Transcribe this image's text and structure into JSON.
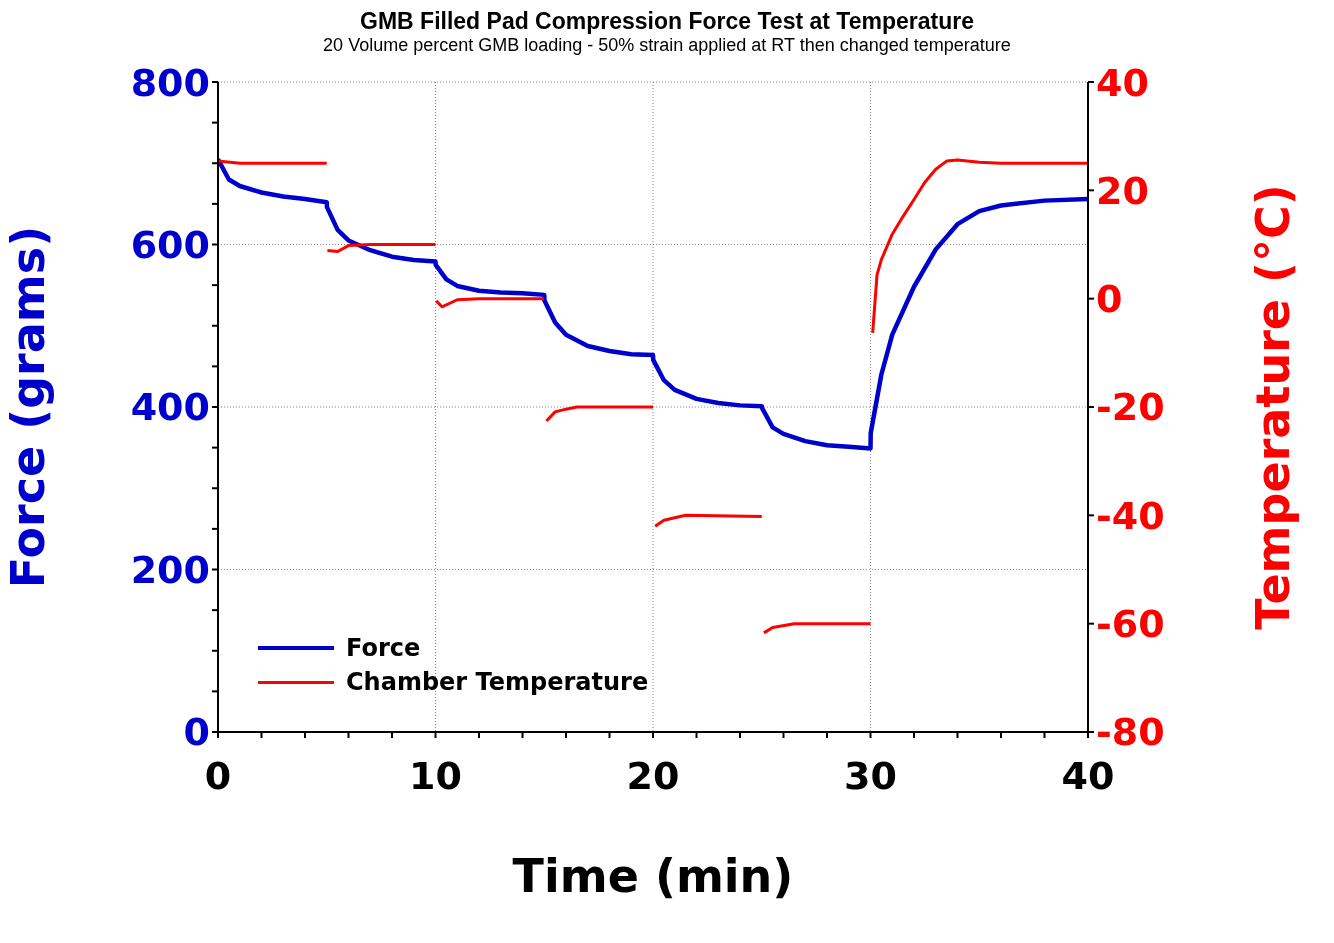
{
  "chart_data": {
    "type": "line",
    "title": "GMB Filled Pad Compression Force Test at Temperature",
    "subtitle": "20 Volume percent GMB loading - 50% strain applied at RT then changed temperature",
    "xlabel": "Time (min)",
    "ylabel": "Force (grams)",
    "y2label": "Temperature (°C)",
    "xlim": [
      0,
      40
    ],
    "xticks": [
      0,
      {
        "value": 2,
        "label": null
      },
      {
        "value": 4,
        "label": null
      },
      {
        "value": 6,
        "label": null
      },
      {
        "value": 8,
        "label": null
      },
      10,
      {
        "value": 12,
        "label": null
      },
      {
        "value": 14,
        "label": null
      },
      {
        "value": 16,
        "label": null
      },
      {
        "value": 18,
        "label": null
      },
      20,
      {
        "value": 22,
        "label": null
      },
      {
        "value": 24,
        "label": null
      },
      {
        "value": 26,
        "label": null
      },
      {
        "value": 28,
        "label": null
      },
      30,
      {
        "value": 32,
        "label": null
      },
      {
        "value": 34,
        "label": null
      },
      {
        "value": 36,
        "label": null
      },
      {
        "value": 38,
        "label": null
      },
      40
    ],
    "ylim": [
      0,
      800
    ],
    "yticks": [
      0,
      {
        "value": 50,
        "label": null
      },
      {
        "value": 100,
        "label": null
      },
      {
        "value": 150,
        "label": null
      },
      200,
      {
        "value": 250,
        "label": null
      },
      {
        "value": 300,
        "label": null
      },
      {
        "value": 350,
        "label": null
      },
      400,
      {
        "value": 450,
        "label": null
      },
      {
        "value": 500,
        "label": null
      },
      {
        "value": 550,
        "label": null
      },
      600,
      {
        "value": 650,
        "label": null
      },
      {
        "value": 700,
        "label": null
      },
      {
        "value": 750,
        "label": null
      },
      800
    ],
    "y2lim": [
      -80,
      40
    ],
    "y2ticks": [
      -80,
      -60,
      -40,
      -20,
      0,
      20,
      40
    ],
    "grid": true,
    "legend": "bottom left",
    "line_style": "solid",
    "marker": "none",
    "series": [
      {
        "name": "Force",
        "color": "#0000cc",
        "x": [
          0,
          0.5,
          1,
          2,
          3,
          4,
          5,
          5.01,
          5.5,
          6,
          7,
          8,
          9,
          10,
          10.01,
          10.5,
          11,
          12,
          13,
          14,
          15,
          15.01,
          15.5,
          16,
          17,
          18,
          19,
          20,
          20.01,
          20.5,
          21,
          22,
          23,
          24,
          25,
          25.01,
          25.5,
          26,
          27,
          28,
          29,
          30,
          30.01,
          30.5,
          31,
          32,
          33,
          34,
          35,
          36,
          38,
          40
        ],
        "values": [
          705,
          680,
          672,
          664,
          659,
          656,
          652,
          646,
          618,
          605,
          593,
          585,
          581,
          579,
          575,
          557,
          549,
          543,
          541,
          540,
          538,
          531,
          504,
          489,
          475,
          469,
          465,
          464,
          458,
          433,
          421,
          410,
          405,
          402,
          401,
          399,
          375,
          367,
          358,
          353,
          351,
          349,
          368,
          440,
          489,
          548,
          594,
          625,
          641,
          648,
          654,
          656
        ]
      },
      {
        "name": "Chamber Temperature",
        "color": "#ff0000",
        "axis": "y2",
        "x": [
          0,
          1,
          5,
          5.02,
          5.03,
          5.5,
          6,
          7,
          10,
          10.02,
          10.03,
          10.3,
          11,
          12,
          15,
          15.02,
          15.1,
          15.5,
          16,
          16.5,
          20,
          20.02,
          20.1,
          20.5,
          21.5,
          25,
          25.02,
          25.1,
          25.5,
          26.5,
          30,
          30.02,
          30.1,
          30.3,
          30.5,
          31,
          31.5,
          32,
          32.5,
          33,
          33.5,
          34,
          35,
          36,
          40
        ],
        "values": [
          25.4,
          25,
          25,
          null,
          8.9,
          8.7,
          9.8,
          10,
          10,
          null,
          -0.4,
          -1.5,
          -0.2,
          0,
          0,
          null,
          -22.6,
          -20.9,
          -20.4,
          -20,
          -20,
          null,
          -42,
          -40.9,
          -40,
          -40.2,
          null,
          -61.7,
          -60.7,
          -60,
          -60,
          null,
          -6.3,
          4.4,
          7.2,
          11.9,
          15.2,
          18.3,
          21.5,
          23.9,
          25.4,
          25.6,
          25.2,
          25,
          25
        ]
      }
    ]
  }
}
